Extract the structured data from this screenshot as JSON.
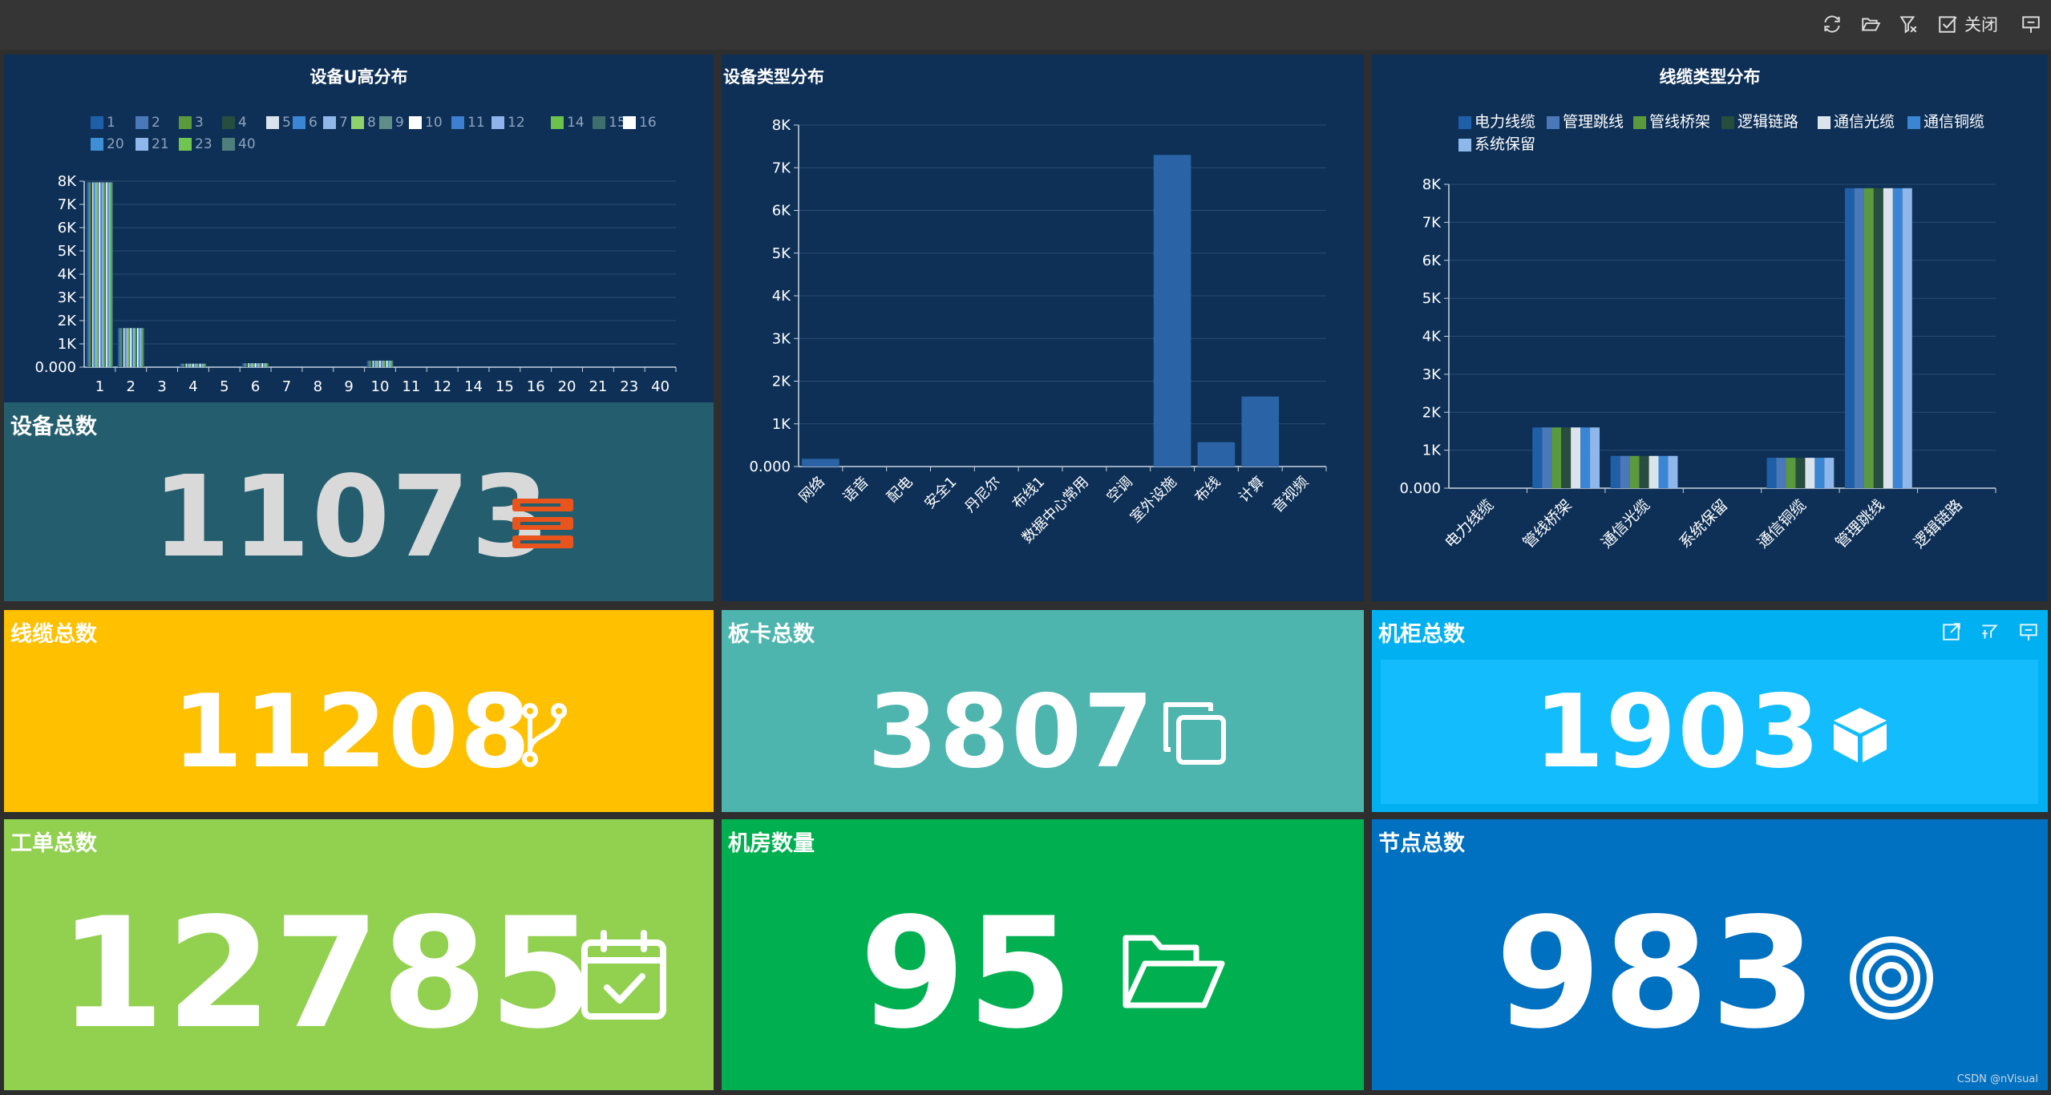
{
  "toolbar": {
    "buttons": [
      {
        "name": "refresh-icon"
      },
      {
        "name": "open-folder-icon"
      },
      {
        "name": "clear-filter-icon"
      },
      {
        "name": "close-checkbox-icon",
        "label": "关闭"
      },
      {
        "name": "pin-icon"
      }
    ]
  },
  "panels": {
    "u_height": {
      "title": "设备U高分布"
    },
    "device_type": {
      "title": "设备类型分布"
    },
    "cable_type": {
      "title": "线缆类型分布"
    }
  },
  "tiles": {
    "device_total": {
      "title": "设备总数",
      "value": "11073",
      "color": "#245e6e",
      "icon": "server-icon",
      "icon_color": "#e8541c",
      "num_color": "#d9d9d9"
    },
    "cable_total": {
      "title": "线缆总数",
      "value": "11208",
      "color": "#ffc000",
      "icon": "branch-icon"
    },
    "card_total": {
      "title": "板卡总数",
      "value": "3807",
      "color": "#4db5ae",
      "icon": "copy-icon"
    },
    "cabinet_total": {
      "title": "机柜总数",
      "value": "1903",
      "color": "#00b0f0",
      "inner_color": "#13bdfd",
      "icon": "cube-icon"
    },
    "workorder_total": {
      "title": "工单总数",
      "value": "12785",
      "color": "#92d050",
      "icon": "calendar-check-icon"
    },
    "room_count": {
      "title": "机房数量",
      "value": "95",
      "color": "#00b050",
      "icon": "folder-open-icon"
    },
    "node_total": {
      "title": "节点总数",
      "value": "983",
      "color": "#0070c0",
      "icon": "target-icon"
    }
  },
  "watermark": "CSDN @nVisual",
  "colors": {
    "navy_bg": "#0e3057",
    "grid": "#2a4c72",
    "axis": "#c8d4e0"
  },
  "chart_data": [
    {
      "type": "bar",
      "title": "设备U高分布",
      "categories": [
        "1",
        "2",
        "3",
        "4",
        "5",
        "6",
        "7",
        "8",
        "9",
        "10",
        "11",
        "12",
        "14",
        "15",
        "16",
        "20",
        "21",
        "23",
        "40"
      ],
      "legend": [
        "1",
        "2",
        "3",
        "4",
        "5",
        "6",
        "7",
        "8",
        "9",
        "10",
        "11",
        "12",
        "14",
        "15",
        "16",
        "20",
        "21",
        "23",
        "40"
      ],
      "legend_colors": [
        "#1f5fa8",
        "#4a78b8",
        "#5b9a3c",
        "#264d3e",
        "#dbe3ec",
        "#3a86d4",
        "#8fb7ea",
        "#8fd16a",
        "#5e8d8a",
        "#ffffff",
        "#3f7fd1",
        "#8fb3ea",
        "#6cc24a",
        "#3f6f6c",
        "#ffffff",
        "#3f8fd6",
        "#8fb7ea",
        "#70c450",
        "#4f7e7b"
      ],
      "values": [
        7950,
        1680,
        0,
        150,
        0,
        170,
        0,
        0,
        0,
        280,
        0,
        0,
        0,
        0,
        0,
        0,
        0,
        0,
        0
      ],
      "yticks": [
        "0.000",
        "1K",
        "2K",
        "3K",
        "4K",
        "5K",
        "6K",
        "7K",
        "8K"
      ],
      "ylim": [
        0,
        8000
      ]
    },
    {
      "type": "bar",
      "title": "设备类型分布",
      "categories": [
        "网络",
        "语音",
        "配电",
        "安全1",
        "丹尼尔",
        "布线1",
        "数据中心常用",
        "空调",
        "室外设施",
        "布线",
        "计算",
        "音视频"
      ],
      "values": [
        180,
        0,
        0,
        0,
        0,
        0,
        0,
        0,
        7300,
        570,
        1640,
        0
      ],
      "yticks": [
        "0.000",
        "1K",
        "2K",
        "3K",
        "4K",
        "5K",
        "6K",
        "7K",
        "8K"
      ],
      "ylim": [
        0,
        8000
      ]
    },
    {
      "type": "bar",
      "title": "线缆类型分布",
      "categories": [
        "电力线缆",
        "管线桥架",
        "通信光缆",
        "系统保留",
        "通信铜缆",
        "管理跳线",
        "逻辑链路"
      ],
      "legend": [
        "电力线缆",
        "管理跳线",
        "管线桥架",
        "逻辑链路",
        "通信光缆",
        "通信铜缆",
        "系统保留"
      ],
      "legend_colors": [
        "#1f5fa8",
        "#4a78b8",
        "#5b9a3c",
        "#264d3e",
        "#dbe3ec",
        "#3a86d4",
        "#8fb7ea"
      ],
      "values": [
        0,
        1600,
        850,
        0,
        800,
        7900,
        0
      ],
      "yticks": [
        "0.000",
        "1K",
        "2K",
        "3K",
        "4K",
        "5K",
        "6K",
        "7K",
        "8K"
      ],
      "ylim": [
        0,
        8000
      ]
    }
  ]
}
